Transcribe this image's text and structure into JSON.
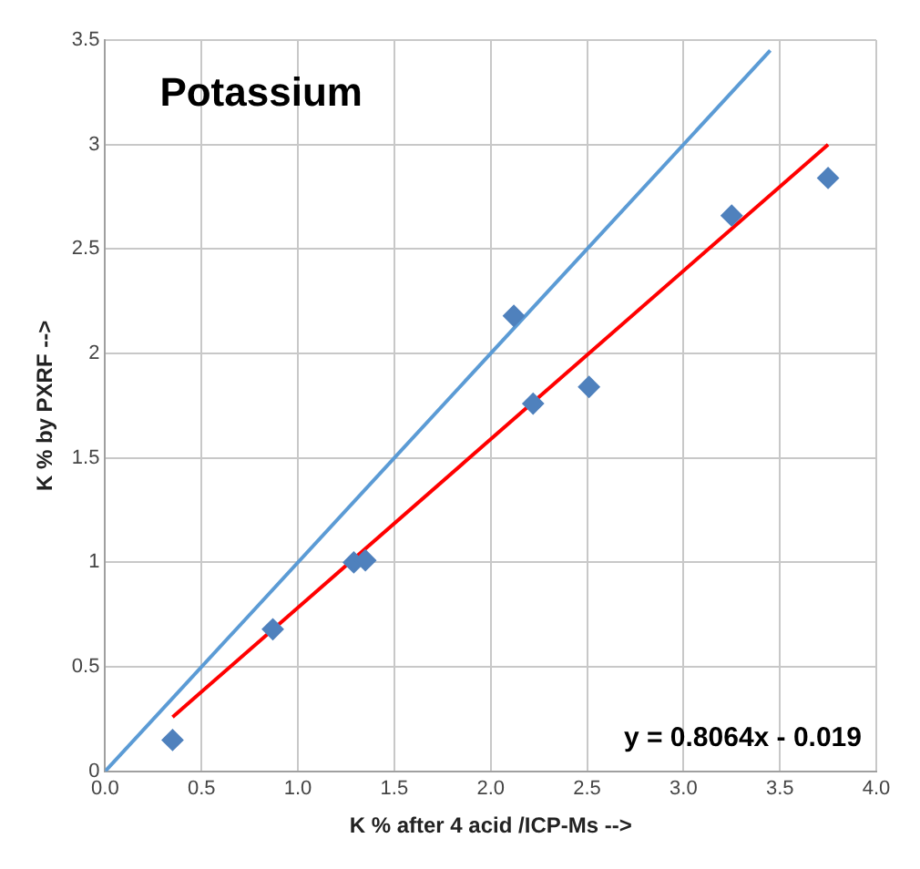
{
  "chart_data": {
    "type": "scatter",
    "title": "Potassium",
    "xlabel": "K % after 4 acid /ICP-Ms -->",
    "ylabel": "K % by PXRF -->",
    "xlim": [
      0,
      4
    ],
    "xticks": [
      {
        "value": 0,
        "label": "0.0"
      },
      {
        "value": 0.5,
        "label": "0.5"
      },
      {
        "value": 1,
        "label": "1.0"
      },
      {
        "value": 1.5,
        "label": "1.5"
      },
      {
        "value": 2,
        "label": "2.0"
      },
      {
        "value": 2.5,
        "label": "2.5"
      },
      {
        "value": 3,
        "label": "3.0"
      },
      {
        "value": 3.5,
        "label": "3.5"
      },
      {
        "value": 4,
        "label": "4.0"
      }
    ],
    "ylim": [
      0,
      3.5
    ],
    "yticks": [
      0,
      0.5,
      1,
      1.5,
      2,
      2.5,
      3,
      3.5
    ],
    "grid": true,
    "marker": "diamond",
    "series": [
      {
        "color": "#4f81bd",
        "x": [
          0.35,
          0.87,
          1.29,
          1.35,
          2.12,
          2.22,
          2.51,
          3.25,
          3.75
        ],
        "values": [
          0.15,
          0.68,
          1.0,
          1.01,
          2.18,
          1.76,
          1.84,
          2.66,
          2.84
        ]
      },
      {
        "type": "line",
        "color": "#5b9bd5",
        "marker": "none",
        "line_style": "solid",
        "x": [
          0,
          3.45
        ],
        "values": [
          0,
          3.45
        ]
      },
      {
        "type": "line",
        "color": "#ff0000",
        "marker": "none",
        "line_style": "solid",
        "x": [
          0.35,
          3.75
        ],
        "values": [
          0.26,
          3.0
        ]
      }
    ],
    "annotations": [
      "y = 0.8064x - 0.019"
    ]
  }
}
